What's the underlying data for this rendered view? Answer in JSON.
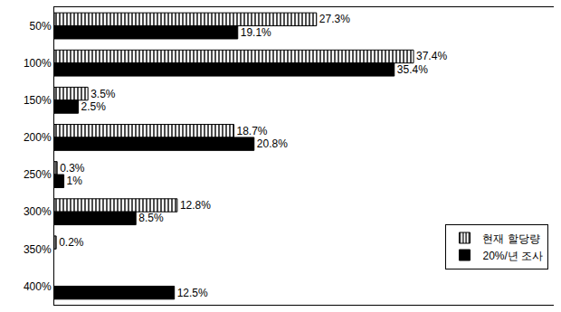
{
  "chart_data": {
    "type": "bar",
    "orientation": "horizontal",
    "categories": [
      "50%",
      "100%",
      "150%",
      "200%",
      "250%",
      "300%",
      "350%",
      "400%"
    ],
    "series": [
      {
        "name": "현재 할당량",
        "color": "#000000",
        "marker": "hatch",
        "values": [
          27.3,
          37.4,
          3.5,
          18.7,
          0.3,
          12.8,
          0.2,
          null
        ],
        "value_labels": [
          "27.3%",
          "37.4%",
          "3.5%",
          "18.7%",
          "0.3%",
          "12.8%",
          "0.2%",
          null
        ]
      },
      {
        "name": "20%/년 조사",
        "color": "#000000",
        "marker": "solid",
        "values": [
          19.1,
          35.4,
          2.5,
          20.8,
          1,
          8.5,
          null,
          12.5
        ],
        "value_labels": [
          "19.1%",
          "35.4%",
          "2.5%",
          "20.8%",
          "1%",
          "8.5%",
          null,
          "12.5%"
        ]
      }
    ],
    "xlim": [
      0,
      52
    ],
    "xticks": [],
    "tick_labels": "y",
    "data_labels": true,
    "grid": false,
    "legend": "lower right"
  }
}
